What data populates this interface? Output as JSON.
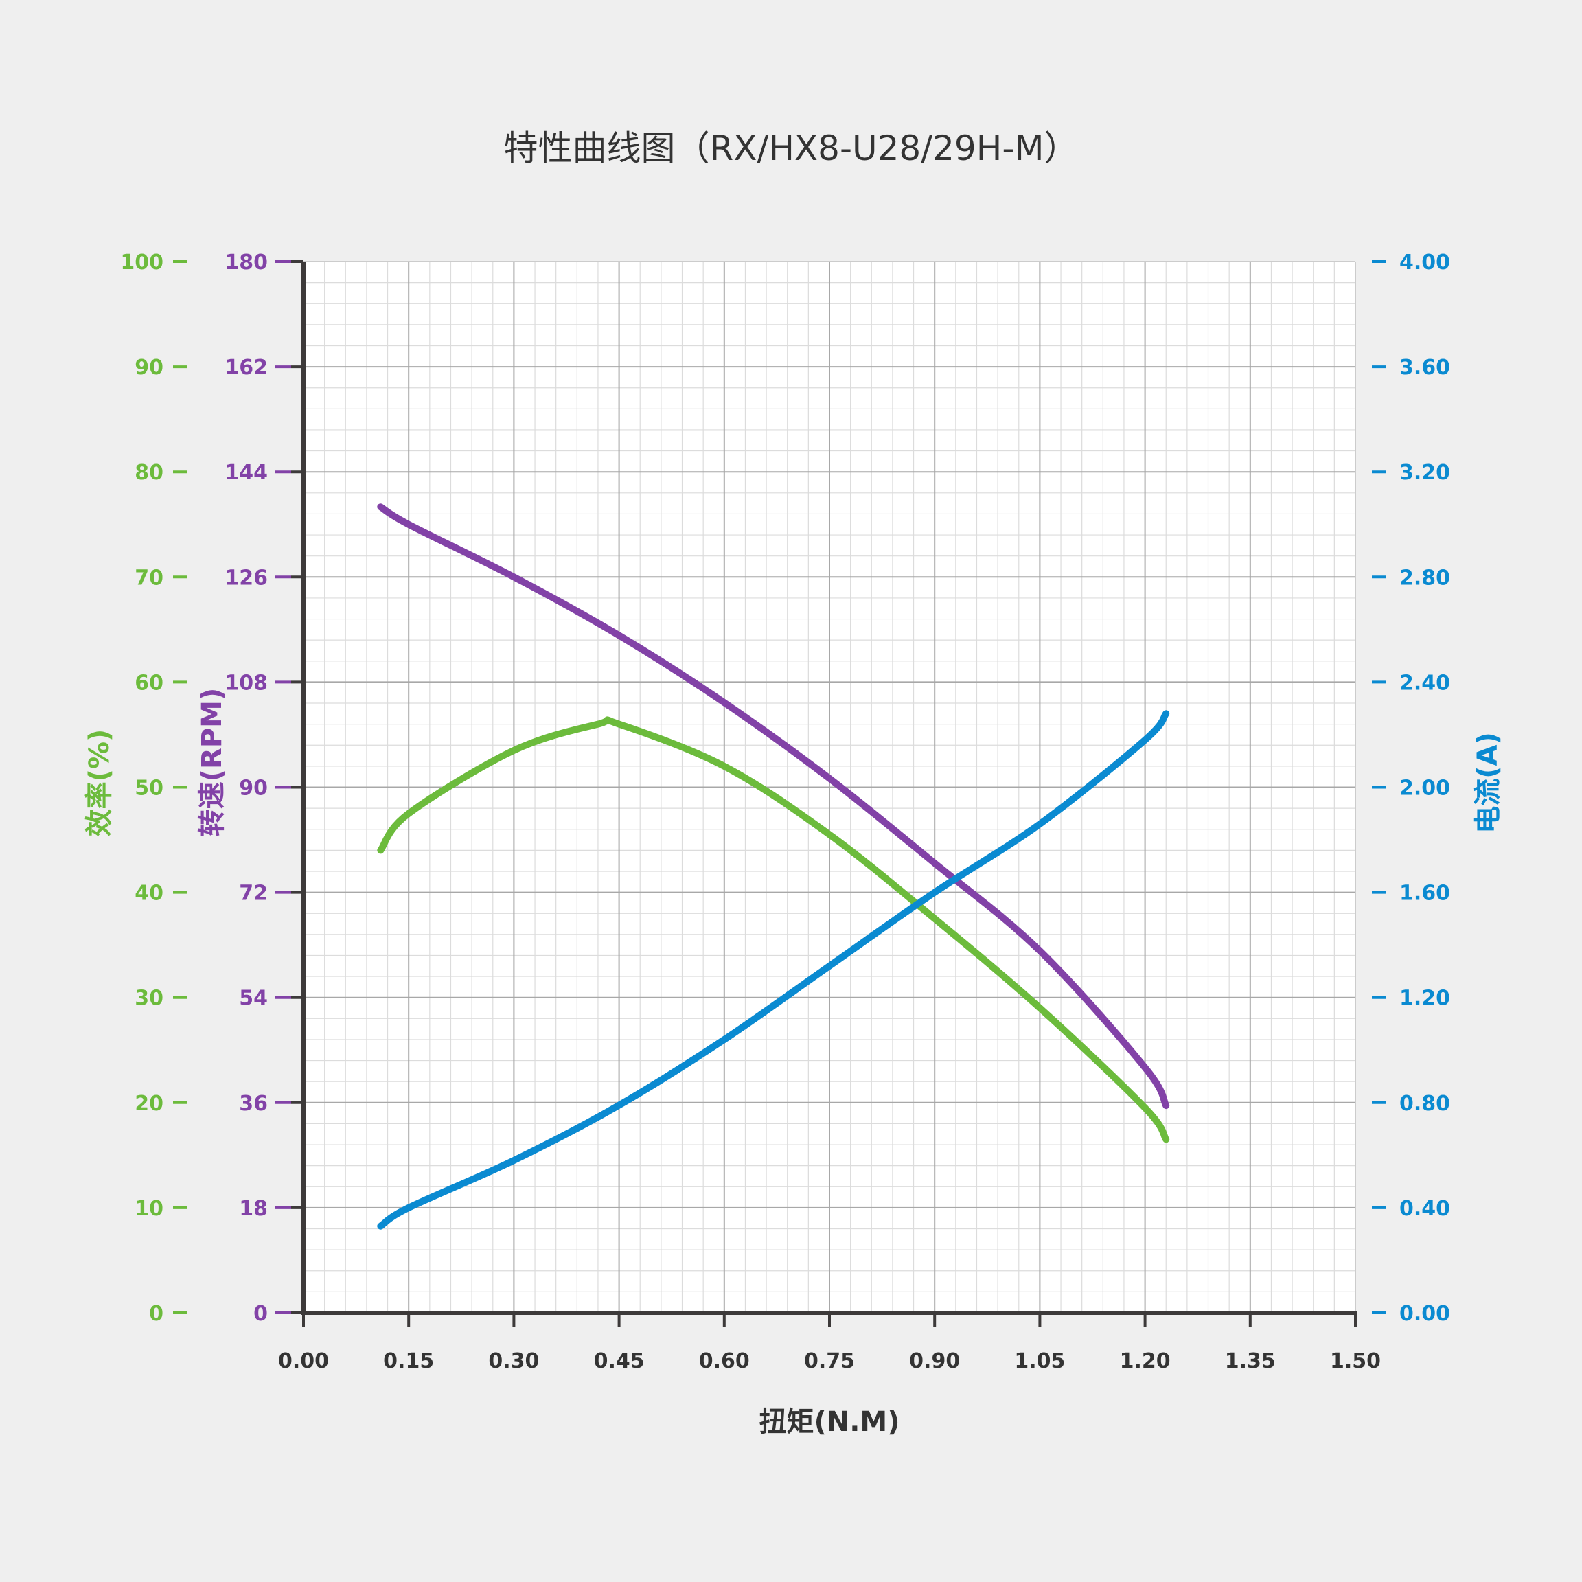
{
  "chart_data": {
    "type": "line",
    "title": "特性曲线图（RX/HX8-U28/29H-M）",
    "xlabel": "扭矩(N.M)",
    "xlim": [
      0,
      1.5
    ],
    "x_ticks": [
      "0.00",
      "0.15",
      "0.30",
      "0.45",
      "0.60",
      "0.75",
      "0.90",
      "1.05",
      "1.20",
      "1.35",
      "1.50"
    ],
    "y_axes": {
      "efficiency": {
        "label": "效率(%)",
        "color": "#6cbb3c",
        "ylim": [
          0,
          100
        ],
        "ticks": [
          "0",
          "10",
          "20",
          "30",
          "40",
          "50",
          "60",
          "70",
          "80",
          "90",
          "100"
        ]
      },
      "speed": {
        "label": "转速(RPM)",
        "color": "#8242a7",
        "ylim": [
          0,
          180
        ],
        "ticks": [
          "0",
          "18",
          "36",
          "54",
          "72",
          "90",
          "108",
          "126",
          "144",
          "162",
          "180"
        ]
      },
      "current": {
        "label": "电流(A)",
        "color": "#0a8ad1",
        "ylim": [
          0,
          4
        ],
        "ticks": [
          "0.00",
          "0.40",
          "0.80",
          "1.20",
          "1.60",
          "2.00",
          "2.40",
          "2.80",
          "3.20",
          "3.60",
          "4.00"
        ]
      }
    },
    "grid": true,
    "series": [
      {
        "axis": "speed",
        "color": "#8242a7",
        "x": [
          0.11,
          0.15,
          0.3,
          0.45,
          0.6,
          0.75,
          0.9,
          1.05,
          1.2,
          1.23
        ],
        "y": [
          138,
          135,
          126,
          116,
          104.5,
          91.5,
          77,
          62,
          42,
          35.5
        ]
      },
      {
        "axis": "efficiency",
        "color": "#6cbb3c",
        "x": [
          0.11,
          0.15,
          0.3,
          0.42,
          0.45,
          0.6,
          0.75,
          0.9,
          1.05,
          1.2,
          1.23
        ],
        "y": [
          44,
          47.5,
          53.5,
          56,
          56,
          52,
          45.5,
          37.5,
          29,
          19.5,
          16.5
        ]
      },
      {
        "axis": "current",
        "color": "#0a8ad1",
        "x": [
          0.11,
          0.15,
          0.3,
          0.45,
          0.6,
          0.75,
          0.9,
          1.05,
          1.2,
          1.23
        ],
        "y": [
          0.33,
          0.4,
          0.58,
          0.79,
          1.04,
          1.32,
          1.6,
          1.86,
          2.18,
          2.28
        ]
      }
    ]
  }
}
